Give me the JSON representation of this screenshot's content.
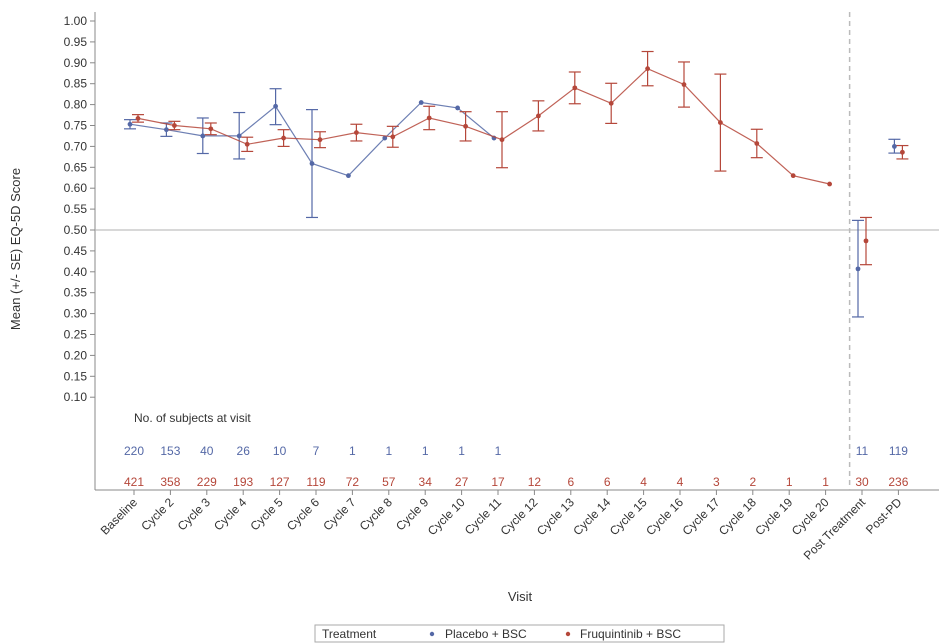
{
  "chart_data": {
    "type": "line",
    "ylabel": "Mean (+/- SE) EQ-5D Score",
    "xlabel": "Visit",
    "ylim": [
      0.1,
      1.0
    ],
    "yticks": [
      "1.00",
      "0.95",
      "0.90",
      "0.85",
      "0.80",
      "0.75",
      "0.70",
      "0.65",
      "0.60",
      "0.55",
      "0.50",
      "0.45",
      "0.40",
      "0.35",
      "0.30",
      "0.25",
      "0.20",
      "0.15",
      "0.10"
    ],
    "categories": [
      "Baseline",
      "Cycle 2",
      "Cycle 3",
      "Cycle 4",
      "Cycle 5",
      "Cycle 6",
      "Cycle 7",
      "Cycle 8",
      "Cycle 9",
      "Cycle 10",
      "Cycle 11",
      "Cycle 12",
      "Cycle 13",
      "Cycle 14",
      "Cycle 15",
      "Cycle 16",
      "Cycle 17",
      "Cycle 18",
      "Cycle 19",
      "Cycle 20",
      "Post Treatment",
      "Post-PD"
    ],
    "reference_line_y": 0.5,
    "separator_after_category": "Cycle 20",
    "grid": false,
    "legend_title": "Treatment",
    "legend_position": "bottom",
    "colors": {
      "placebo": "#5468a6",
      "fruquintinib": "#b5473a",
      "axis": "#888888",
      "refline": "#b0b0b0",
      "separator": "#bbbbbb"
    },
    "series": [
      {
        "name": "Placebo + BSC",
        "color_key": "placebo",
        "mean": [
          0.753,
          0.74,
          0.725,
          0.725,
          0.796,
          0.659,
          0.63,
          0.72,
          0.805,
          0.792,
          0.72,
          null,
          null,
          null,
          null,
          null,
          null,
          null,
          null,
          null,
          0.407,
          0.7
        ],
        "lower": [
          0.742,
          0.724,
          0.683,
          0.67,
          0.752,
          0.53,
          null,
          null,
          null,
          null,
          null,
          null,
          null,
          null,
          null,
          null,
          null,
          null,
          null,
          null,
          0.292,
          0.684
        ],
        "upper": [
          0.764,
          0.756,
          0.768,
          0.781,
          0.838,
          0.788,
          null,
          null,
          null,
          null,
          null,
          null,
          null,
          null,
          null,
          null,
          null,
          null,
          null,
          null,
          0.523,
          0.717
        ],
        "connected_through": 10,
        "n": [
          "220",
          "153",
          "40",
          "26",
          "10",
          "7",
          "1",
          "1",
          "1",
          "1",
          "1",
          "",
          "",
          "",
          "",
          "",
          "",
          "",
          "",
          "",
          "11",
          "119"
        ]
      },
      {
        "name": "Fruquintinib + BSC",
        "color_key": "fruquintinib",
        "mean": [
          0.767,
          0.75,
          0.742,
          0.705,
          0.72,
          0.716,
          0.733,
          0.723,
          0.768,
          0.748,
          0.716,
          0.773,
          0.84,
          0.803,
          0.886,
          0.848,
          0.757,
          0.707,
          0.63,
          0.61,
          0.474,
          0.686
        ],
        "lower": [
          0.758,
          0.74,
          0.728,
          0.688,
          0.7,
          0.697,
          0.713,
          0.698,
          0.74,
          0.713,
          0.649,
          0.737,
          0.802,
          0.755,
          0.845,
          0.794,
          0.641,
          0.673,
          null,
          null,
          0.417,
          0.67
        ],
        "upper": [
          0.776,
          0.76,
          0.756,
          0.722,
          0.74,
          0.735,
          0.753,
          0.748,
          0.796,
          0.783,
          0.783,
          0.809,
          0.878,
          0.851,
          0.927,
          0.902,
          0.873,
          0.741,
          null,
          null,
          0.53,
          0.702
        ],
        "connected_through": 19,
        "n": [
          "421",
          "358",
          "229",
          "193",
          "127",
          "119",
          "72",
          "57",
          "34",
          "27",
          "17",
          "12",
          "6",
          "6",
          "4",
          "4",
          "3",
          "2",
          "1",
          "1",
          "30",
          "236"
        ]
      }
    ],
    "n_table_title": "No. of subjects at visit",
    "legend_items": [
      "Placebo + BSC",
      "Fruquintinib + BSC"
    ]
  }
}
